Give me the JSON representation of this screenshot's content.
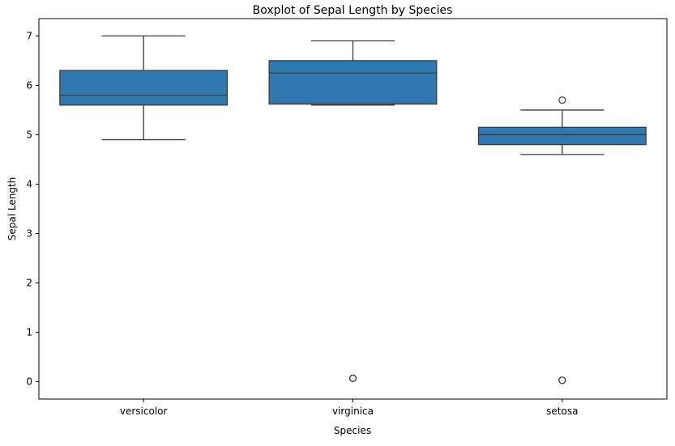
{
  "chart_data": {
    "type": "box",
    "title": "Boxplot of Sepal Length by Species",
    "xlabel": "Species",
    "ylabel": "Sepal Length",
    "ylim": [
      -0.35,
      7.35
    ],
    "yticks": [
      0,
      1,
      2,
      3,
      4,
      5,
      6,
      7
    ],
    "grid": false,
    "box_color": "#2f78b0",
    "line_color": "#3d3d3d",
    "categories": [
      "versicolor",
      "virginica",
      "setosa"
    ],
    "boxes": [
      {
        "category": "versicolor",
        "whisker_low": 4.9,
        "q1": 5.6,
        "median": 5.8,
        "q3": 6.3,
        "whisker_high": 7.0,
        "outliers": []
      },
      {
        "category": "virginica",
        "whisker_low": 5.6,
        "q1": 5.62,
        "median": 6.25,
        "q3": 6.5,
        "whisker_high": 6.9,
        "outliers": [
          0.07,
          0.07
        ]
      },
      {
        "category": "setosa",
        "whisker_low": 4.6,
        "q1": 4.8,
        "median": 5.0,
        "q3": 5.15,
        "whisker_high": 5.5,
        "outliers": [
          5.7,
          0.03,
          0.03
        ]
      }
    ]
  }
}
